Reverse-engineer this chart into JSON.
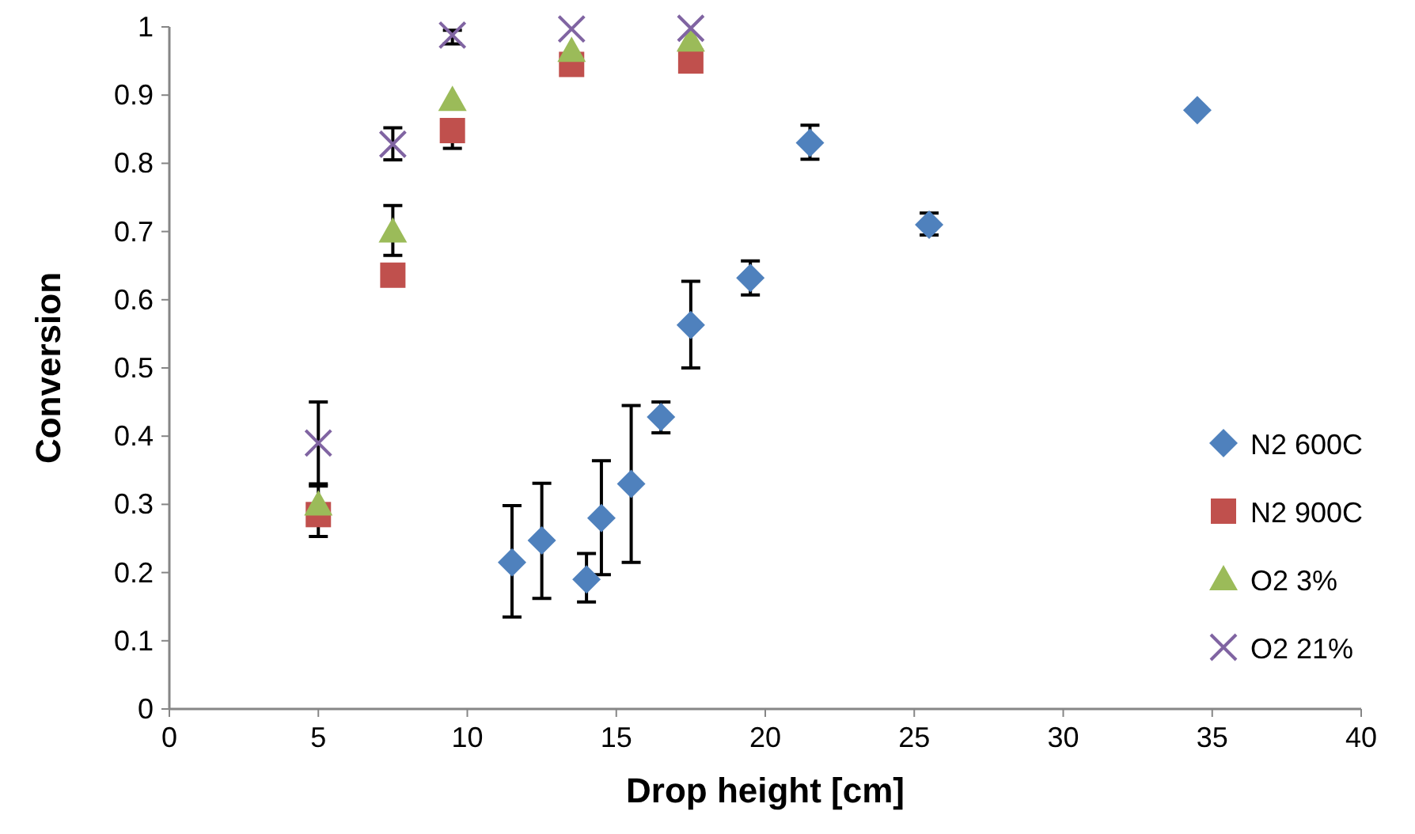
{
  "chart_data": {
    "type": "scatter",
    "xlabel": "Drop height [cm]",
    "ylabel": "Conversion",
    "xlim": [
      0,
      40
    ],
    "ylim": [
      0,
      1
    ],
    "xticks": [
      0,
      5,
      10,
      15,
      20,
      25,
      30,
      35,
      40
    ],
    "yticks": [
      0,
      0.1,
      0.2,
      0.3,
      0.4,
      0.5,
      0.6,
      0.7,
      0.8,
      0.9,
      1
    ],
    "grid": false,
    "legend": "right",
    "series": [
      {
        "name": "N2 600C",
        "color": "#4f81bd",
        "marker": "diamond",
        "x": [
          11.5,
          12.5,
          14,
          14.5,
          15.5,
          16.5,
          17.5,
          19.5,
          21.5,
          25.5,
          34.5
        ],
        "values": [
          0.215,
          0.247,
          0.19,
          0.28,
          0.33,
          0.428,
          0.563,
          0.632,
          0.83,
          0.71,
          0.878
        ],
        "errors": [
          [
            0.135,
            0.298
          ],
          [
            0.162,
            0.331
          ],
          [
            0.157,
            0.228
          ],
          [
            0.197,
            0.364
          ],
          [
            0.215,
            0.445
          ],
          [
            0.405,
            0.45
          ],
          [
            0.5,
            0.627
          ],
          [
            0.607,
            0.657
          ],
          [
            0.806,
            0.856
          ],
          [
            0.695,
            0.727
          ],
          null
        ]
      },
      {
        "name": "N2 900C",
        "color": "#c0504d",
        "marker": "square",
        "x": [
          5,
          7.5,
          9.5,
          13.5,
          17.5
        ],
        "values": [
          0.285,
          0.636,
          0.848,
          0.945,
          0.95
        ],
        "errors": [
          [
            0.253,
            0.285
          ],
          null,
          [
            0.822,
            0.848
          ],
          null,
          null
        ]
      },
      {
        "name": "O2 3%",
        "color": "#9bbb59",
        "marker": "triangle",
        "x": [
          5,
          7.5,
          9.5,
          13.5,
          17.5
        ],
        "values": [
          0.3,
          0.7,
          0.893,
          0.965,
          0.98
        ],
        "errors": [
          [
            0.29,
            0.327
          ],
          [
            0.665,
            0.738
          ],
          null,
          null,
          null
        ]
      },
      {
        "name": "O2 21%",
        "color": "#8064a2",
        "marker": "cross",
        "x": [
          5,
          7.5,
          9.5,
          13.5,
          17.5
        ],
        "values": [
          0.39,
          0.828,
          0.988,
          0.997,
          0.998
        ],
        "errors": [
          [
            0.33,
            0.45
          ],
          [
            0.805,
            0.852
          ],
          [
            0.975,
            0.995
          ],
          null,
          null
        ]
      }
    ]
  }
}
